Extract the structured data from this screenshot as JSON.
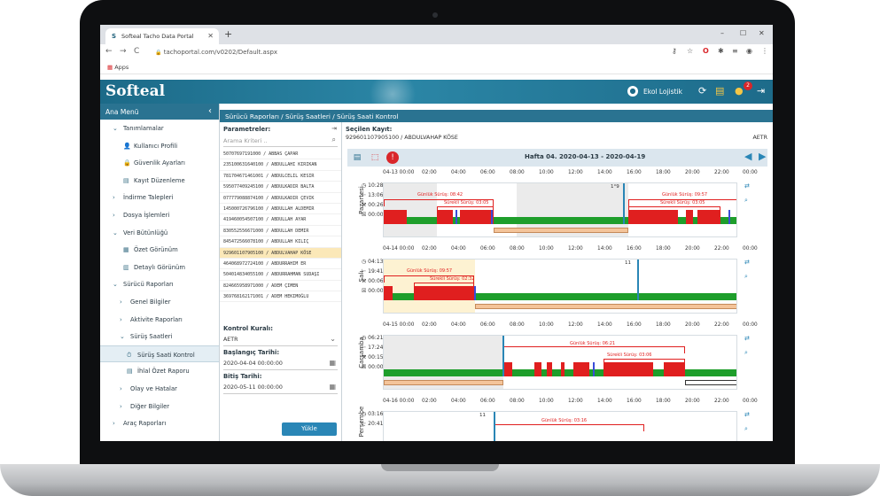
{
  "browser": {
    "tab_title": "Softeal Tacho Data Portal",
    "url": "tachoportal.com/v0202/Default.aspx",
    "bookmarks_label": "Apps"
  },
  "header": {
    "logo": "Softeal",
    "user": "Ekol Lojistik",
    "notification_count": "2"
  },
  "sidebar": {
    "title": "Ana Menü",
    "items": [
      {
        "label": "Tanımlamalar",
        "prefix": "⌄"
      },
      {
        "label": "Kullanıcı Profili",
        "prefix": "👤"
      },
      {
        "label": "Güvenlik Ayarları",
        "prefix": "🔒"
      },
      {
        "label": "Kayıt Düzenleme",
        "prefix": "▤"
      },
      {
        "label": "İndirme Talepleri",
        "prefix": "›"
      },
      {
        "label": "Dosya İşlemleri",
        "prefix": "›"
      },
      {
        "label": "Veri Bütünlüğü",
        "prefix": "⌄"
      },
      {
        "label": "Özet Görünüm",
        "prefix": "▦"
      },
      {
        "label": "Detaylı Görünüm",
        "prefix": "▥"
      },
      {
        "label": "Sürücü Raporları",
        "prefix": "⌄"
      },
      {
        "label": "Genel Bilgiler",
        "prefix": "›"
      },
      {
        "label": "Aktivite Raporları",
        "prefix": "›"
      },
      {
        "label": "Sürüş Saatleri",
        "prefix": "⌄"
      },
      {
        "label": "Sürüş Saati Kontrol",
        "prefix": "⏱"
      },
      {
        "label": "İhlal Özet Raporu",
        "prefix": "▤"
      },
      {
        "label": "Olay ve Hatalar",
        "prefix": "›"
      },
      {
        "label": "Diğer Bilgiler",
        "prefix": "›"
      },
      {
        "label": "Araç Raporları",
        "prefix": "›"
      }
    ]
  },
  "breadcrumb": "Sürücü Raporları / Sürüş Saatleri / Sürüş Saati Kontrol",
  "params": {
    "title": "Parametreler:",
    "search_placeholder": "Arama Kriteri ..",
    "drivers": [
      "50707697191000 / ABBAS ÇAPAR",
      "235100631640100 / ABDULLAHI KIRIKAN",
      "781704671461001 / ABDULCELIL KESIR",
      "595077409245100 / ABDULKADIR BALTA",
      "077779088874100 / ABDULKADIR ÇEVIK",
      "145000726796100 / ABDULLAH ALDEMIR",
      "419460054507100 / ABDULLAH AYAR",
      "830552556671000 / ABDULLAH DEMIR",
      "845472566078100 / ABDULLAH KILIÇ",
      "929601107905100 / ABDULVAHAP KÖSE",
      "464068972724100 / ABDURRAHIM ER",
      "504014834055100 / ABDURRAHMAN SUDAŞI",
      "824665958971000 / ADEM ÇIMEN",
      "369768162171001 / ADEM HEKIMOĞLU"
    ],
    "rule_label": "Kontrol Kuralı:",
    "rule_value": "AETR",
    "start_label": "Başlangıç Tarihi:",
    "start_value": "2020-04-04 00:00:00",
    "end_label": "Bitiş Tarihi:",
    "end_value": "2020-05-11 00:00:00",
    "load_button": "Yükle"
  },
  "report": {
    "selected_title": "Seçilen Kayıt:",
    "selected_driver": "929601107905100 / ABDULVAHAP KÖSE",
    "rule": "AETR",
    "week_label": "Hafta 04.  2020-04-13 - 2020-04-19",
    "hours": [
      "02:00",
      "04:00",
      "06:00",
      "08:00",
      "10:00",
      "12:00",
      "14:00",
      "16:00",
      "18:00",
      "20:00",
      "22:00",
      "00:00"
    ],
    "days": [
      {
        "date": "04-13 00:00",
        "name": "Pazartesi",
        "drive": "10:28",
        "rest": "13:06",
        "work": "00:26",
        "avail": "00:00",
        "label_daily": "Günlük Sürüş: 08:42",
        "label_cont": "Sürekli Sürüş: 03:05",
        "label_daily2": "Günlük Sürüş: 09:57",
        "label_cont2": "Sürekli Sürüş: 03:05",
        "marker": "1°9"
      },
      {
        "date": "04-14 00:00",
        "name": "Salı",
        "drive": "04:13",
        "rest": "19:41",
        "work": "00:06",
        "avail": "00:00",
        "label_daily": "Günlük Sürüş: 09:57",
        "label_cont": "Sürekli Sürüş: 02:32",
        "marker": "11"
      },
      {
        "date": "04-15 00:00",
        "name": "Çarşamba",
        "drive": "06:21",
        "rest": "17:24",
        "work": "00:15",
        "avail": "00:00",
        "label_daily": "Günlük Sürüş: 06:21",
        "label_cont": "Sürekli Sürüş: 03:06"
      },
      {
        "date": "04-16 00:00",
        "name": "Perşembe",
        "drive": "03:16",
        "rest": "20:41",
        "label_daily": "Günlük Sürüş: 03:16",
        "marker": "11"
      }
    ]
  }
}
